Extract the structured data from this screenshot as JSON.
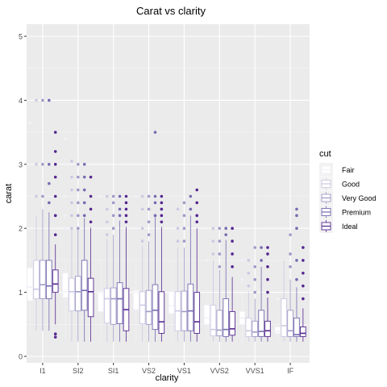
{
  "chart_data": {
    "type": "boxplot",
    "title": "Carat vs clarity",
    "xlabel": "clarity",
    "ylabel": "carat",
    "ylim": [
      0,
      5.2
    ],
    "y_ticks": [
      0,
      1,
      2,
      3,
      4,
      5
    ],
    "grid": true,
    "legend_position": "right",
    "legend_title": "cut",
    "categories": [
      "I1",
      "SI2",
      "SI1",
      "VS2",
      "VS1",
      "VVS2",
      "VVS1",
      "IF"
    ],
    "series": [
      {
        "name": "Fair",
        "color": "#f2f0f7",
        "boxes": [
          {
            "min": 0.34,
            "q1": 0.87,
            "median": 1.08,
            "q3": 1.38,
            "max": 1.8,
            "outliers": [
              3.0,
              3.65,
              4.5,
              5.0
            ]
          },
          {
            "min": 0.25,
            "q1": 0.92,
            "median": 1.01,
            "q3": 1.3,
            "max": 1.5,
            "outliers": [
              2.0,
              2.2,
              2.5,
              3.0,
              3.4
            ]
          },
          {
            "min": 0.25,
            "q1": 0.7,
            "median": 1.0,
            "q3": 1.02,
            "max": 1.52,
            "outliers": [
              2.0,
              2.5
            ]
          },
          {
            "min": 0.25,
            "q1": 0.73,
            "median": 1.0,
            "q3": 1.03,
            "max": 1.47,
            "outliers": [
              2.0,
              2.5
            ]
          },
          {
            "min": 0.23,
            "q1": 0.67,
            "median": 0.79,
            "q3": 1.01,
            "max": 1.5,
            "outliers": [
              2.0
            ]
          },
          {
            "min": 0.27,
            "q1": 0.5,
            "median": 0.6,
            "q3": 0.8,
            "max": 1.01,
            "outliers": [
              1.5,
              2.0
            ]
          },
          {
            "min": 0.23,
            "q1": 0.5,
            "median": 0.6,
            "q3": 0.7,
            "max": 1.0,
            "outliers": [
              1.2,
              1.5
            ]
          },
          {
            "min": 0.25,
            "q1": 0.36,
            "median": 0.39,
            "q3": 0.46,
            "max": 0.6,
            "outliers": [
              0.9
            ]
          }
        ]
      },
      {
        "name": "Good",
        "color": "#cbc9e2",
        "boxes": [
          {
            "min": 0.4,
            "q1": 0.9,
            "median": 1.05,
            "q3": 1.5,
            "max": 2.2,
            "outliers": [
              2.5,
              3.0,
              4.0
            ]
          },
          {
            "min": 0.23,
            "q1": 0.71,
            "median": 1.01,
            "q3": 1.22,
            "max": 1.98,
            "outliers": [
              2.0,
              2.2,
              2.4,
              2.6,
              2.8,
              3.05
            ]
          },
          {
            "min": 0.23,
            "q1": 0.52,
            "median": 0.9,
            "q3": 1.06,
            "max": 1.83,
            "outliers": [
              1.9,
              2.1,
              2.3,
              2.5
            ]
          },
          {
            "min": 0.23,
            "q1": 0.51,
            "median": 0.8,
            "q3": 1.01,
            "max": 1.73,
            "outliers": [
              1.8,
              2.0,
              2.3,
              2.5
            ]
          },
          {
            "min": 0.23,
            "q1": 0.4,
            "median": 0.71,
            "q3": 1.01,
            "max": 1.7,
            "outliers": [
              1.8,
              2.0,
              2.3
            ]
          },
          {
            "min": 0.23,
            "q1": 0.32,
            "median": 0.42,
            "q3": 0.8,
            "max": 1.5,
            "outliers": [
              1.6,
              1.8,
              2.0
            ]
          },
          {
            "min": 0.23,
            "q1": 0.31,
            "median": 0.4,
            "q3": 0.6,
            "max": 1.01,
            "outliers": [
              1.1,
              1.3,
              1.5
            ]
          },
          {
            "min": 0.23,
            "q1": 0.31,
            "median": 0.48,
            "q3": 0.9,
            "max": 1.5,
            "outliers": []
          }
        ]
      },
      {
        "name": "Very Good",
        "color": "#9e9ac8",
        "boxes": [
          {
            "min": 0.4,
            "q1": 0.9,
            "median": 1.12,
            "q3": 1.5,
            "max": 2.3,
            "outliers": [
              2.5,
              3.0,
              4.0
            ]
          },
          {
            "min": 0.23,
            "q1": 0.71,
            "median": 1.01,
            "q3": 1.25,
            "max": 2.0,
            "outliers": [
              2.0,
              2.2,
              2.4,
              2.6,
              2.8,
              3.0
            ]
          },
          {
            "min": 0.23,
            "q1": 0.5,
            "median": 0.9,
            "q3": 1.07,
            "max": 1.9,
            "outliers": [
              2.0,
              2.2,
              2.4,
              2.5
            ]
          },
          {
            "min": 0.23,
            "q1": 0.5,
            "median": 0.7,
            "q3": 1.03,
            "max": 1.8,
            "outliers": [
              1.9,
              2.1,
              2.3,
              2.5
            ]
          },
          {
            "min": 0.23,
            "q1": 0.4,
            "median": 0.7,
            "q3": 1.02,
            "max": 1.7,
            "outliers": [
              1.8,
              2.0,
              2.2,
              2.4
            ]
          },
          {
            "min": 0.23,
            "q1": 0.32,
            "median": 0.41,
            "q3": 0.72,
            "max": 1.35,
            "outliers": [
              1.4,
              1.6,
              1.8,
              2.0
            ]
          },
          {
            "min": 0.23,
            "q1": 0.31,
            "median": 0.38,
            "q3": 0.55,
            "max": 0.9,
            "outliers": [
              1.0,
              1.2,
              1.4,
              1.7
            ]
          },
          {
            "min": 0.23,
            "q1": 0.31,
            "median": 0.4,
            "q3": 0.72,
            "max": 1.2,
            "outliers": [
              1.4,
              1.6,
              1.9
            ]
          }
        ]
      },
      {
        "name": "Premium",
        "color": "#756bb1",
        "boxes": [
          {
            "min": 0.4,
            "q1": 0.9,
            "median": 1.1,
            "q3": 1.5,
            "max": 2.25,
            "outliers": [
              2.4,
              2.7,
              3.0,
              4.0
            ]
          },
          {
            "min": 0.23,
            "q1": 0.72,
            "median": 1.03,
            "q3": 1.5,
            "max": 2.16,
            "outliers": [
              2.2,
              2.4,
              2.6,
              2.8,
              3.0
            ]
          },
          {
            "min": 0.23,
            "q1": 0.51,
            "median": 0.9,
            "q3": 1.15,
            "max": 2.12,
            "outliers": [
              2.2,
              2.3,
              2.5
            ]
          },
          {
            "min": 0.23,
            "q1": 0.42,
            "median": 0.72,
            "q3": 1.12,
            "max": 2.18,
            "outliers": [
              2.2,
              2.4,
              2.5,
              3.5
            ]
          },
          {
            "min": 0.23,
            "q1": 0.4,
            "median": 0.71,
            "q3": 1.13,
            "max": 2.2,
            "outliers": [
              2.3,
              2.5
            ]
          },
          {
            "min": 0.23,
            "q1": 0.31,
            "median": 0.42,
            "q3": 0.9,
            "max": 1.82,
            "outliers": [
              1.9,
              2.0
            ]
          },
          {
            "min": 0.23,
            "q1": 0.31,
            "median": 0.39,
            "q3": 0.72,
            "max": 1.4,
            "outliers": [
              1.5,
              1.7
            ]
          },
          {
            "min": 0.23,
            "q1": 0.31,
            "median": 0.34,
            "q3": 0.6,
            "max": 1.08,
            "outliers": [
              1.2,
              1.5,
              2.0,
              2.2,
              2.3
            ]
          }
        ]
      },
      {
        "name": "Ideal",
        "color": "#54278f",
        "boxes": [
          {
            "min": 0.5,
            "q1": 1.0,
            "median": 1.13,
            "q3": 1.35,
            "max": 1.75,
            "outliers": [
              0.3,
              0.35,
              1.9,
              2.2,
              2.5,
              2.8,
              3.0,
              3.2,
              3.5
            ]
          },
          {
            "min": 0.23,
            "q1": 0.62,
            "median": 1.01,
            "q3": 1.22,
            "max": 2.01,
            "outliers": [
              2.1,
              2.3,
              2.5,
              2.8
            ]
          },
          {
            "min": 0.23,
            "q1": 0.4,
            "median": 0.73,
            "q3": 1.06,
            "max": 2.02,
            "outliers": [
              2.1,
              2.2,
              2.3,
              2.4,
              2.5
            ]
          },
          {
            "min": 0.23,
            "q1": 0.36,
            "median": 0.54,
            "q3": 1.01,
            "max": 2.02,
            "outliers": [
              2.1,
              2.2,
              2.3,
              2.4,
              2.5
            ]
          },
          {
            "min": 0.23,
            "q1": 0.36,
            "median": 0.54,
            "q3": 1.0,
            "max": 2.0,
            "outliers": [
              2.1,
              2.2,
              2.4,
              2.6
            ]
          },
          {
            "min": 0.23,
            "q1": 0.33,
            "median": 0.43,
            "q3": 0.7,
            "max": 1.24,
            "outliers": [
              1.4,
              1.6,
              1.8,
              2.0
            ]
          },
          {
            "min": 0.23,
            "q1": 0.31,
            "median": 0.4,
            "q3": 0.55,
            "max": 0.92,
            "outliers": [
              1.0,
              1.2,
              1.4,
              1.6,
              1.7
            ]
          },
          {
            "min": 0.23,
            "q1": 0.31,
            "median": 0.36,
            "q3": 0.46,
            "max": 0.75,
            "outliers": [
              0.9,
              1.1,
              1.3,
              1.5,
              1.7
            ]
          }
        ]
      }
    ]
  }
}
